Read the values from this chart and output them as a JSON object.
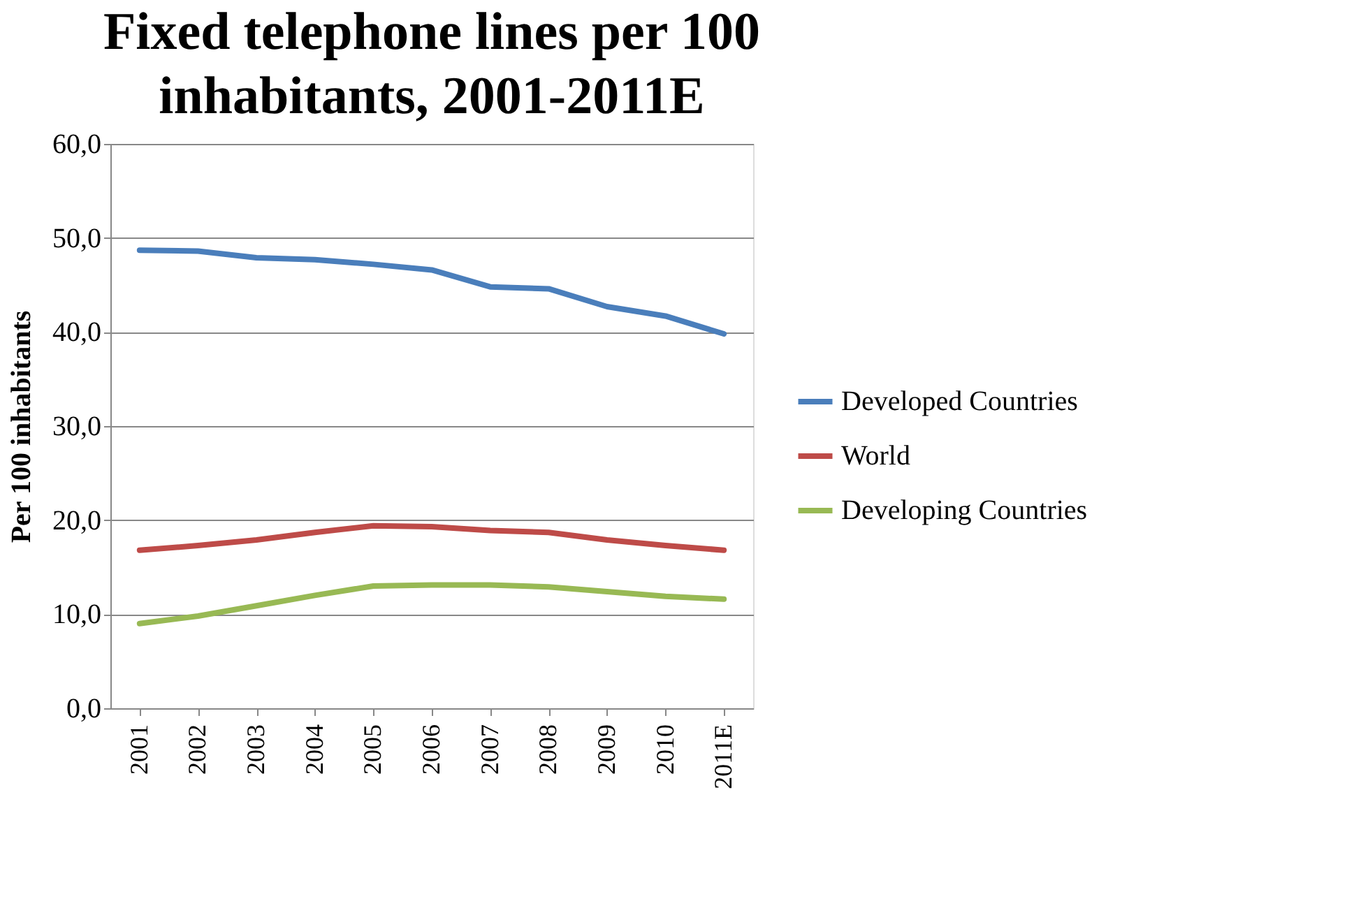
{
  "chart_data": {
    "type": "line",
    "title": "Fixed telephone lines per 100 inhabitants, 2001-2011E",
    "ylabel": "Per 100 inhabitants",
    "categories": [
      "2001",
      "2002",
      "2003",
      "2004",
      "2005",
      "2006",
      "2007",
      "2008",
      "2009",
      "2010",
      "2011E"
    ],
    "series": [
      {
        "name": "Developed Countries",
        "color": "#4a7ebb",
        "values": [
          48.7,
          48.6,
          47.9,
          47.7,
          47.2,
          46.6,
          44.8,
          44.6,
          42.7,
          41.7,
          39.8
        ]
      },
      {
        "name": "World",
        "color": "#be4b48",
        "values": [
          16.8,
          17.3,
          17.9,
          18.7,
          19.4,
          19.3,
          18.9,
          18.7,
          17.9,
          17.3,
          16.8
        ]
      },
      {
        "name": "Developing Countries",
        "color": "#98b954",
        "values": [
          9.0,
          9.8,
          10.9,
          12.0,
          13.0,
          13.1,
          13.1,
          12.9,
          12.4,
          11.9,
          11.6
        ]
      }
    ],
    "ylim": [
      0,
      60
    ],
    "yticks": [
      {
        "value": 0,
        "label": "0,0"
      },
      {
        "value": 10,
        "label": "10,0"
      },
      {
        "value": 20,
        "label": "20,0"
      },
      {
        "value": 30,
        "label": "30,0"
      },
      {
        "value": 40,
        "label": "40,0"
      },
      {
        "value": 50,
        "label": "50,0"
      },
      {
        "value": 60,
        "label": "60,0"
      }
    ],
    "grid": "y",
    "legend": "right",
    "marker": "none",
    "line_style": "solid"
  }
}
